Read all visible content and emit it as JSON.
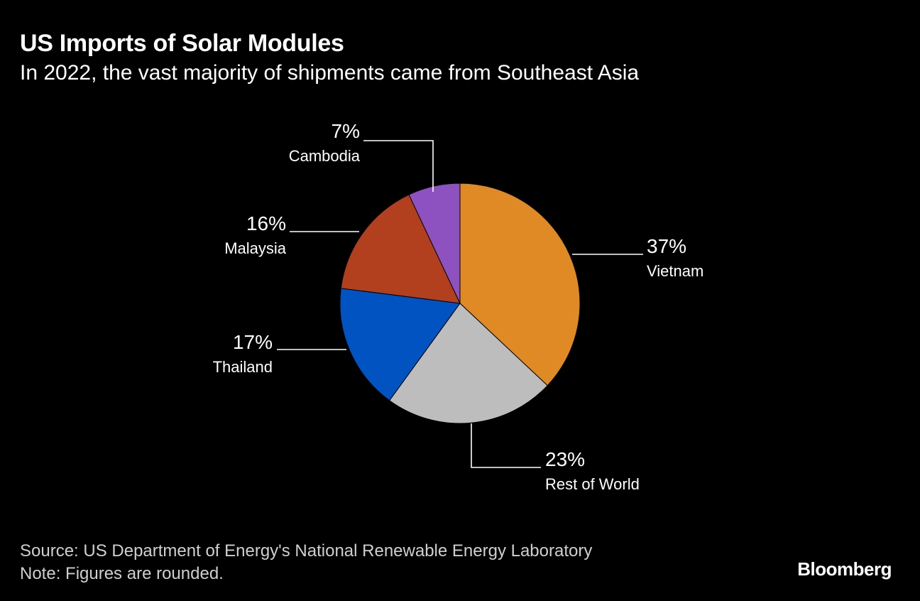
{
  "header": {
    "title": "US Imports of Solar Modules",
    "subtitle": "In 2022, the vast majority of shipments came from Southeast Asia"
  },
  "chart_data": {
    "type": "pie",
    "title": "US Imports of Solar Modules",
    "subtitle": "In 2022, the vast majority of shipments came from Southeast Asia",
    "slices": [
      {
        "label": "Vietnam",
        "value": 37,
        "value_label": "37%",
        "color": "#e08a25"
      },
      {
        "label": "Rest of World",
        "value": 23,
        "value_label": "23%",
        "color": "#bdbdbd"
      },
      {
        "label": "Thailand",
        "value": 17,
        "value_label": "17%",
        "color": "#0153c1"
      },
      {
        "label": "Malaysia",
        "value": 16,
        "value_label": "16%",
        "color": "#b23f1e"
      },
      {
        "label": "Cambodia",
        "value": 7,
        "value_label": "7%",
        "color": "#8d52c0"
      }
    ]
  },
  "footer": {
    "source": "Source: US Department of Energy's National Renewable Energy Laboratory",
    "note": "Note: Figures are rounded."
  },
  "brand": "Bloomberg"
}
